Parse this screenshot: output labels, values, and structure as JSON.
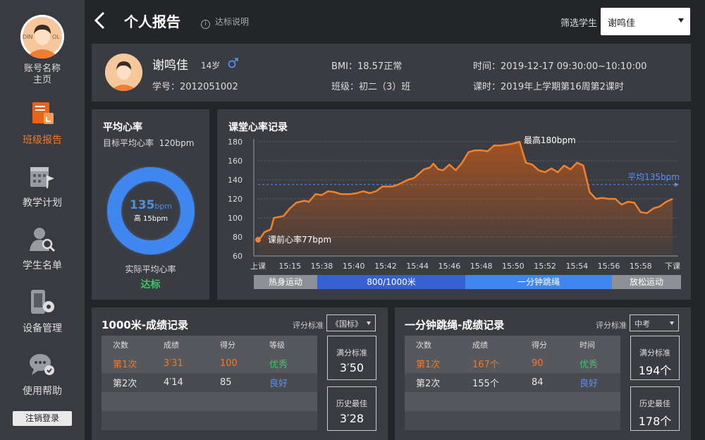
{
  "sidebar": {
    "account_name": "账号名称\n主页",
    "avatar_badge": "DIN    OL",
    "items": [
      {
        "label": "班级报告",
        "active": true
      },
      {
        "label": "教学计划",
        "active": false
      },
      {
        "label": "学生名单",
        "active": false
      },
      {
        "label": "设备管理",
        "active": false
      },
      {
        "label": "使用帮助",
        "active": false
      }
    ],
    "logout": "注销登录"
  },
  "header": {
    "title": "个人报告",
    "info_link": "达标说明",
    "filter_label": "筛选学生",
    "filter_value": "谢鸣佳"
  },
  "student": {
    "name": "谢鸣佳",
    "age": "14岁",
    "id_label": "学号：",
    "id": "2012051002",
    "bmi_label": "BMI：",
    "bmi": "18.57正常",
    "class_label": "班级：",
    "class": "初二（3）班",
    "time_label": "时间：",
    "time": "2019-12-17 09:30:00~10:10:00",
    "lesson_label": "课时：",
    "lesson": "2019年上学期第16周第2课时"
  },
  "avg_hr": {
    "title": "平均心率",
    "target_label": "目标平均心率",
    "target_value": "120bpm",
    "value": "135",
    "unit": "bpm",
    "diff": "高 15bpm",
    "actual_label": "实际平均心率",
    "status": "达标",
    "colors": {
      "ring": "#3f86ee",
      "status": "#3ec36a"
    }
  },
  "hr_chart": {
    "title": "课堂心率记录",
    "annotations": {
      "start": "课前心率77bpm",
      "max": "最高180bpm",
      "avg": "平均135bpm"
    },
    "phases": [
      {
        "label": "热身运动",
        "color": "#8f9096"
      },
      {
        "label": "800/1000米",
        "color": "#3761d0"
      },
      {
        "label": "一分钟跳绳",
        "color": "#3f86ee"
      },
      {
        "label": "放松运动",
        "color": "#8f9096"
      }
    ]
  },
  "chart_data": {
    "type": "area",
    "title": "课堂心率记录",
    "xlabel": "",
    "ylabel": "",
    "ylim": [
      60,
      180
    ],
    "yticks": [
      180,
      160,
      140,
      120,
      100,
      80,
      60
    ],
    "xticks": [
      "上课",
      "15:15",
      "15:38",
      "15:40",
      "15:42",
      "15:44",
      "15:46",
      "15:48",
      "15:50",
      "15:52",
      "15:54",
      "15:56",
      "15:58",
      "下课"
    ],
    "average_line": 135,
    "series": [
      {
        "name": "",
        "x": [
          0,
          0.1,
          0.2,
          0.4,
          0.5,
          0.65,
          0.8,
          1.0,
          1.2,
          1.45,
          1.6,
          1.8,
          2.0,
          2.2,
          2.4,
          2.6,
          2.9,
          3.1,
          3.3,
          3.5,
          3.7,
          3.9,
          4.2,
          4.4,
          4.7,
          4.9,
          5.2,
          5.4,
          5.5,
          5.65,
          5.8,
          6.0,
          6.2,
          6.4,
          6.6,
          6.8,
          7.0,
          7.2,
          7.4,
          7.6,
          7.8,
          8.0,
          8.2,
          8.4,
          8.6,
          8.8,
          9.0,
          9.2,
          9.4,
          9.6,
          9.8,
          10.0,
          10.2,
          10.4,
          10.6,
          10.8,
          11.0,
          11.2,
          11.4,
          11.6,
          11.8,
          12.0,
          12.2,
          12.4,
          12.6,
          12.8,
          13.0
        ],
        "values": [
          77,
          80,
          85,
          88,
          100,
          101,
          102,
          110,
          116,
          118,
          117,
          125,
          124,
          128,
          127,
          125,
          125,
          126,
          128,
          126,
          128,
          133,
          133,
          135,
          140,
          142,
          151,
          153,
          157,
          151,
          150,
          156,
          150,
          158,
          169,
          171,
          171,
          170,
          176,
          176,
          177,
          178,
          180,
          158,
          156,
          150,
          148,
          152,
          148,
          155,
          151,
          158,
          155,
          127,
          120,
          121,
          120,
          120,
          114,
          117,
          116,
          106,
          105,
          110,
          112,
          117,
          120
        ]
      }
    ]
  },
  "run_records": {
    "title": "1000米-成绩记录",
    "std_label": "评分标准",
    "std_value": "《国标》",
    "headers": [
      "次数",
      "成绩",
      "得分",
      "等级"
    ],
    "rows": [
      [
        "第1次",
        "3′31",
        "100",
        "优秀"
      ],
      [
        "第2次",
        "4′14",
        "85",
        "良好"
      ]
    ],
    "full_label": "满分标准",
    "full_value": "3′50",
    "best_label": "历史最佳",
    "best_value": "3′28"
  },
  "rope_records": {
    "title": "一分钟跳绳-成绩记录",
    "std_label": "评分标准",
    "std_value": "中考",
    "headers": [
      "次数",
      "成绩",
      "得分",
      "时间"
    ],
    "rows": [
      [
        "第1次",
        "167个",
        "90",
        "优秀"
      ],
      [
        "第2次",
        "155个",
        "84",
        "良好"
      ]
    ],
    "full_label": "满分标准",
    "full_value": "194个",
    "best_label": "历史最佳",
    "best_value": "178个"
  },
  "colors": {
    "accent": "#f07a2a",
    "good": "#3ec36a",
    "fine": "#5b8ef0"
  }
}
